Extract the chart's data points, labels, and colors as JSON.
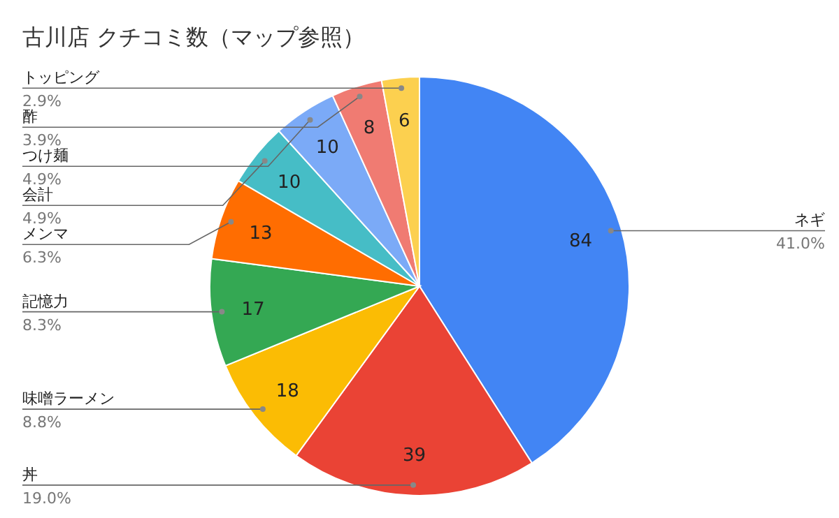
{
  "chart_data": {
    "type": "pie",
    "title": "古川店 クチコミ数（マップ参照）",
    "categories": [
      "ネギ",
      "丼",
      "味噌ラーメン",
      "記憶力",
      "メンマ",
      "会計",
      "つけ麺",
      "酢",
      "トッピング"
    ],
    "values": [
      41.0,
      19.0,
      8.8,
      8.3,
      6.3,
      4.9,
      4.9,
      3.9,
      2.9
    ],
    "colors": [
      "#4285f4",
      "#ea4335",
      "#fbbc04",
      "#34a853",
      "#ff6d01",
      "#46bdc6",
      "#7baaf7",
      "#f07b72",
      "#fcd04f"
    ],
    "value_labels": [
      "41.0%",
      "19.0%",
      "8.8%",
      "8.3%",
      "6.3%",
      "4.9%",
      "4.9%",
      "3.9%",
      "2.9%"
    ],
    "annotations": [
      {
        "text": "84",
        "x": "ネギ"
      },
      {
        "text": "39",
        "x": "丼"
      },
      {
        "text": "18",
        "x": "味噌ラーメン"
      },
      {
        "text": "17",
        "x": "記憶力"
      },
      {
        "text": "13",
        "x": "メンマ"
      },
      {
        "text": "10",
        "x": "会計"
      },
      {
        "text": "10",
        "x": "つけ麺"
      },
      {
        "text": "8",
        "x": "酢"
      },
      {
        "text": "6",
        "x": "トッピング"
      }
    ]
  }
}
